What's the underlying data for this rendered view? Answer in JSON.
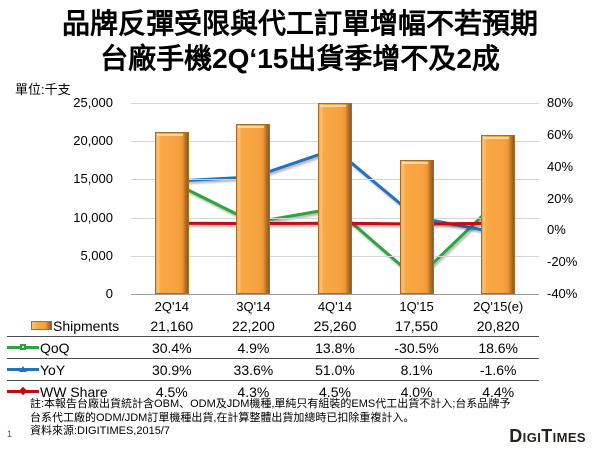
{
  "title": {
    "line1": "品牌反彈受限與代工訂單增幅不若預期",
    "line2": "台廠手機2Q‘15出貨季增不及2成"
  },
  "unit_label": "單位:千支",
  "chart_data": {
    "type": "combo bar+line",
    "categories": [
      "2Q'14",
      "3Q'14",
      "4Q'14",
      "1Q'15",
      "2Q'15(e)"
    ],
    "series": [
      {
        "name": "Shipments",
        "type": "bar",
        "axis": "left",
        "color": "#F9A242",
        "marker": "bar",
        "values": [
          21160,
          22200,
          25260,
          17550,
          20820
        ],
        "display": [
          "21,160",
          "22,200",
          "25,260",
          "17,550",
          "20,820"
        ]
      },
      {
        "name": "QoQ",
        "type": "line",
        "axis": "right",
        "color": "#2BA63C",
        "marker": "square",
        "values": [
          30.4,
          4.9,
          13.8,
          -30.5,
          18.6
        ],
        "display": [
          "30.4%",
          "4.9%",
          "13.8%",
          "-30.5%",
          "18.6%"
        ]
      },
      {
        "name": "YoY",
        "type": "line",
        "axis": "right",
        "color": "#2273BD",
        "marker": "triangle",
        "values": [
          30.9,
          33.6,
          51.0,
          8.1,
          -1.6
        ],
        "display": [
          "30.9%",
          "33.6%",
          "51.0%",
          "8.1%",
          "-1.6%"
        ]
      },
      {
        "name": "WW Share",
        "type": "line",
        "axis": "right",
        "color": "#C00B15",
        "marker": "diamond",
        "values": [
          4.5,
          4.3,
          4.5,
          4.0,
          4.4
        ],
        "display": [
          "4.5%",
          "4.3%",
          "4.5%",
          "4.0%",
          "4.4%"
        ]
      }
    ],
    "left_axis": {
      "min": 0,
      "max": 25000,
      "tick_values": [
        25000,
        20000,
        15000,
        10000,
        5000,
        0
      ],
      "tick_labels": [
        "25,000",
        "20,000",
        "15,000",
        "10,000",
        "5,000",
        "0"
      ]
    },
    "right_axis": {
      "min": -40,
      "max": 80,
      "tick_values": [
        80,
        60,
        40,
        20,
        0,
        -20,
        -40
      ],
      "tick_labels": [
        "80%",
        "60%",
        "40%",
        "20%",
        "0%",
        "-20%",
        "-40%"
      ]
    },
    "grid": true,
    "legend_position": "table-below"
  },
  "notes": {
    "line1": "註:本報告台廠出貨統計含OBM、ODM及JDM機種,單純只有組裝的EMS代工出貨不計入;台系品牌予",
    "line2": "台系代工廠的ODM/JDM訂單機種出貨,在計算整體出貨加總時已扣除重複計入。",
    "line3": "資料來源:DIGITIMES,2015/7"
  },
  "page_number": "1",
  "logo_text": "DigiTimes",
  "colors": {
    "bar_fill": "#F9A242",
    "bar_border": "#AD6B20",
    "bar_shadow": "#8A5A28",
    "qoq_line": "#2BA63C",
    "yoy_line": "#2273BD",
    "ww_share_line": "#C00B15",
    "gridline": "#D6D6D6",
    "axis": "#9B9B9B"
  }
}
